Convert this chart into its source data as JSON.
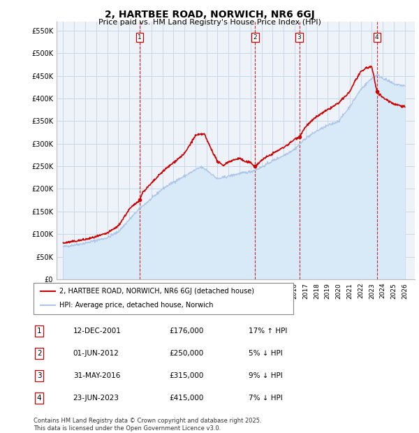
{
  "title": "2, HARTBEE ROAD, NORWICH, NR6 6GJ",
  "subtitle": "Price paid vs. HM Land Registry's House Price Index (HPI)",
  "ylabel_ticks": [
    "£0",
    "£50K",
    "£100K",
    "£150K",
    "£200K",
    "£250K",
    "£300K",
    "£350K",
    "£400K",
    "£450K",
    "£500K",
    "£550K"
  ],
  "ylim": [
    0,
    570000
  ],
  "sale_dates": [
    2001.95,
    2012.42,
    2016.42,
    2023.47
  ],
  "sale_prices": [
    176000,
    250000,
    315000,
    415000
  ],
  "sale_labels": [
    "1",
    "2",
    "3",
    "4"
  ],
  "legend_entries": [
    "2, HARTBEE ROAD, NORWICH, NR6 6GJ (detached house)",
    "HPI: Average price, detached house, Norwich"
  ],
  "table_rows": [
    [
      "1",
      "12-DEC-2001",
      "£176,000",
      "17% ↑ HPI"
    ],
    [
      "2",
      "01-JUN-2012",
      "£250,000",
      "5% ↓ HPI"
    ],
    [
      "3",
      "31-MAY-2016",
      "£315,000",
      "9% ↓ HPI"
    ],
    [
      "4",
      "23-JUN-2023",
      "£415,000",
      "7% ↓ HPI"
    ]
  ],
  "footer": "Contains HM Land Registry data © Crown copyright and database right 2025.\nThis data is licensed under the Open Government Licence v3.0.",
  "hpi_color": "#aec6e8",
  "price_color": "#cc0000",
  "dashed_line_color": "#cc0000",
  "background_color": "#ffffff",
  "grid_color": "#c8d8e8",
  "hpi_fill_color": "#d8eaf8",
  "chart_bg_color": "#edf3f8"
}
